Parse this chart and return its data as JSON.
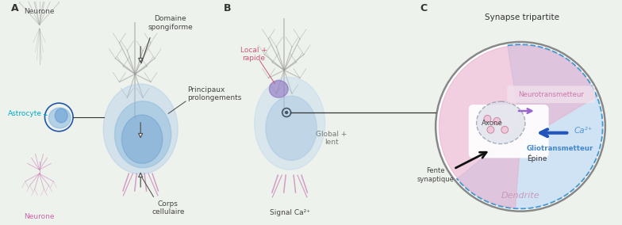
{
  "bg_color": "#eef2ec",
  "panel_A_label": "A",
  "panel_B_label": "B",
  "panel_C_label": "C",
  "neurone_top": "Neurone",
  "neurone_bottom": "Neurone",
  "astrocyte_label": "Astrocyte",
  "domaine_spongiforme": "Domaine\nspongiforme",
  "principaux_prolongements": "Principaux\nprolongements",
  "corps_cellulaire": "Corps\ncellulaire",
  "local_rapide": "Local +\nrapide",
  "global_lent": "Global +\nlent",
  "signal_ca": "Signal Ca²⁺",
  "synapse_tripartite": "Synapse tripartite",
  "neurotransmetteur": "Neurotransmetteur",
  "axone": "Axone",
  "ca2": "Ca²⁺",
  "gliotransmetteur": "Gliotransmetteur",
  "epine": "Épine",
  "fente_synaptique": "Fente\nsynaptique",
  "dendrite": "Dendrite",
  "color_astrocyte_label": "#00aacc",
  "color_neurone_bottom": "#cc66aa",
  "color_local_rapide": "#cc5577",
  "color_global_lent": "#777777",
  "color_neurotransmetteur": "#cc77aa",
  "color_ca2": "#5599cc",
  "color_gliotransmetteur": "#4488cc",
  "color_axone": "#444444",
  "color_epine": "#444444",
  "color_fente": "#444444",
  "color_dendrite": "#cc99bb",
  "color_synapse_title": "#333333"
}
